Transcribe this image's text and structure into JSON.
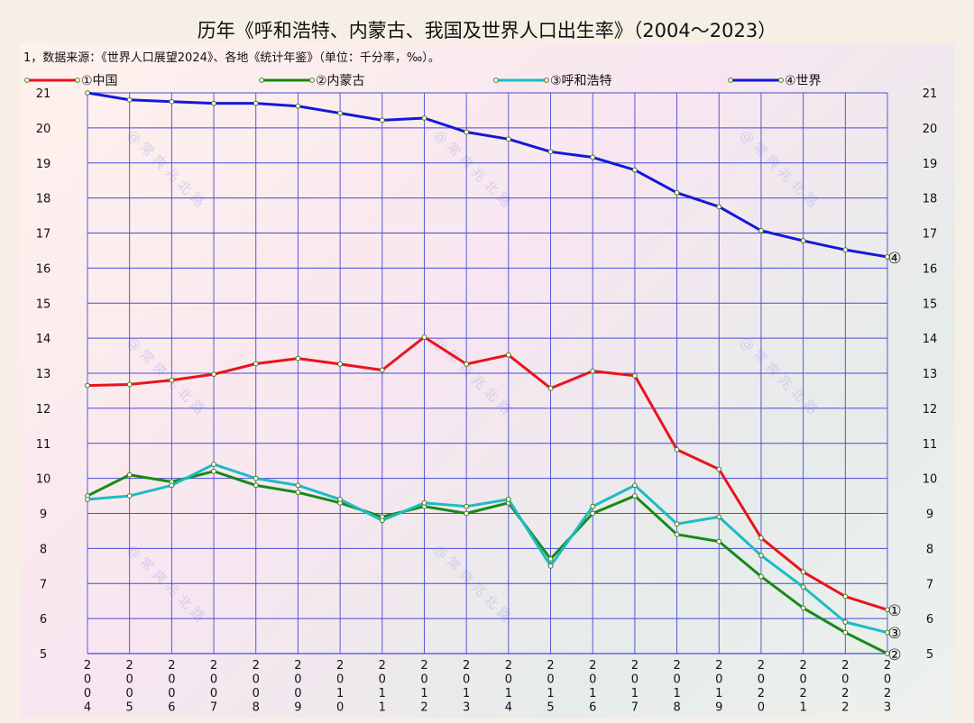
{
  "title": "历年《呼和浩特、内蒙古、我国及世界人口出生率》（2004～2023）",
  "note": "1，数据来源：《世界人口展望2024》、各地《统计年鉴》（单位：千分率，‰）。",
  "watermark": "@常爽兆北路",
  "chart_data": {
    "type": "line",
    "x": [
      "2004",
      "2005",
      "2006",
      "2007",
      "2008",
      "2009",
      "2010",
      "2011",
      "2012",
      "2013",
      "2014",
      "2015",
      "2016",
      "2017",
      "2018",
      "2019",
      "2020",
      "2021",
      "2022",
      "2023"
    ],
    "ylim": [
      5,
      21
    ],
    "yticks": [
      5,
      6,
      7,
      8,
      9,
      10,
      11,
      12,
      13,
      14,
      15,
      16,
      17,
      18,
      19,
      20,
      21
    ],
    "grid": true,
    "legend_position": "top",
    "series": [
      {
        "name": "①中国",
        "marker": "①",
        "color": "#e8141c",
        "values": [
          12.65,
          12.68,
          12.8,
          12.97,
          13.27,
          13.42,
          13.26,
          13.09,
          14.03,
          13.26,
          13.52,
          12.57,
          13.06,
          12.93,
          10.82,
          10.26,
          8.3,
          7.33,
          6.63,
          6.25
        ]
      },
      {
        "name": "②内蒙古",
        "marker": "②",
        "color": "#178a17",
        "values": [
          9.5,
          10.1,
          9.9,
          10.2,
          9.8,
          9.6,
          9.3,
          8.9,
          9.2,
          9.0,
          9.3,
          7.7,
          9.0,
          9.5,
          8.4,
          8.2,
          7.2,
          6.3,
          5.6,
          5.0
        ]
      },
      {
        "name": "③呼和浩特",
        "marker": "③",
        "color": "#1cbcc4",
        "values": [
          9.4,
          9.5,
          9.8,
          10.4,
          10.0,
          9.8,
          9.4,
          8.8,
          9.3,
          9.2,
          9.4,
          7.5,
          9.2,
          9.8,
          8.7,
          8.9,
          7.8,
          6.9,
          5.9,
          5.6
        ]
      },
      {
        "name": "④世界",
        "marker": "④",
        "color": "#1418d8",
        "values": [
          21.0,
          20.8,
          20.75,
          20.7,
          20.7,
          20.62,
          20.42,
          20.22,
          20.28,
          19.88,
          19.68,
          19.32,
          19.16,
          18.8,
          18.15,
          17.75,
          17.07,
          16.78,
          16.52,
          16.32
        ]
      }
    ]
  }
}
